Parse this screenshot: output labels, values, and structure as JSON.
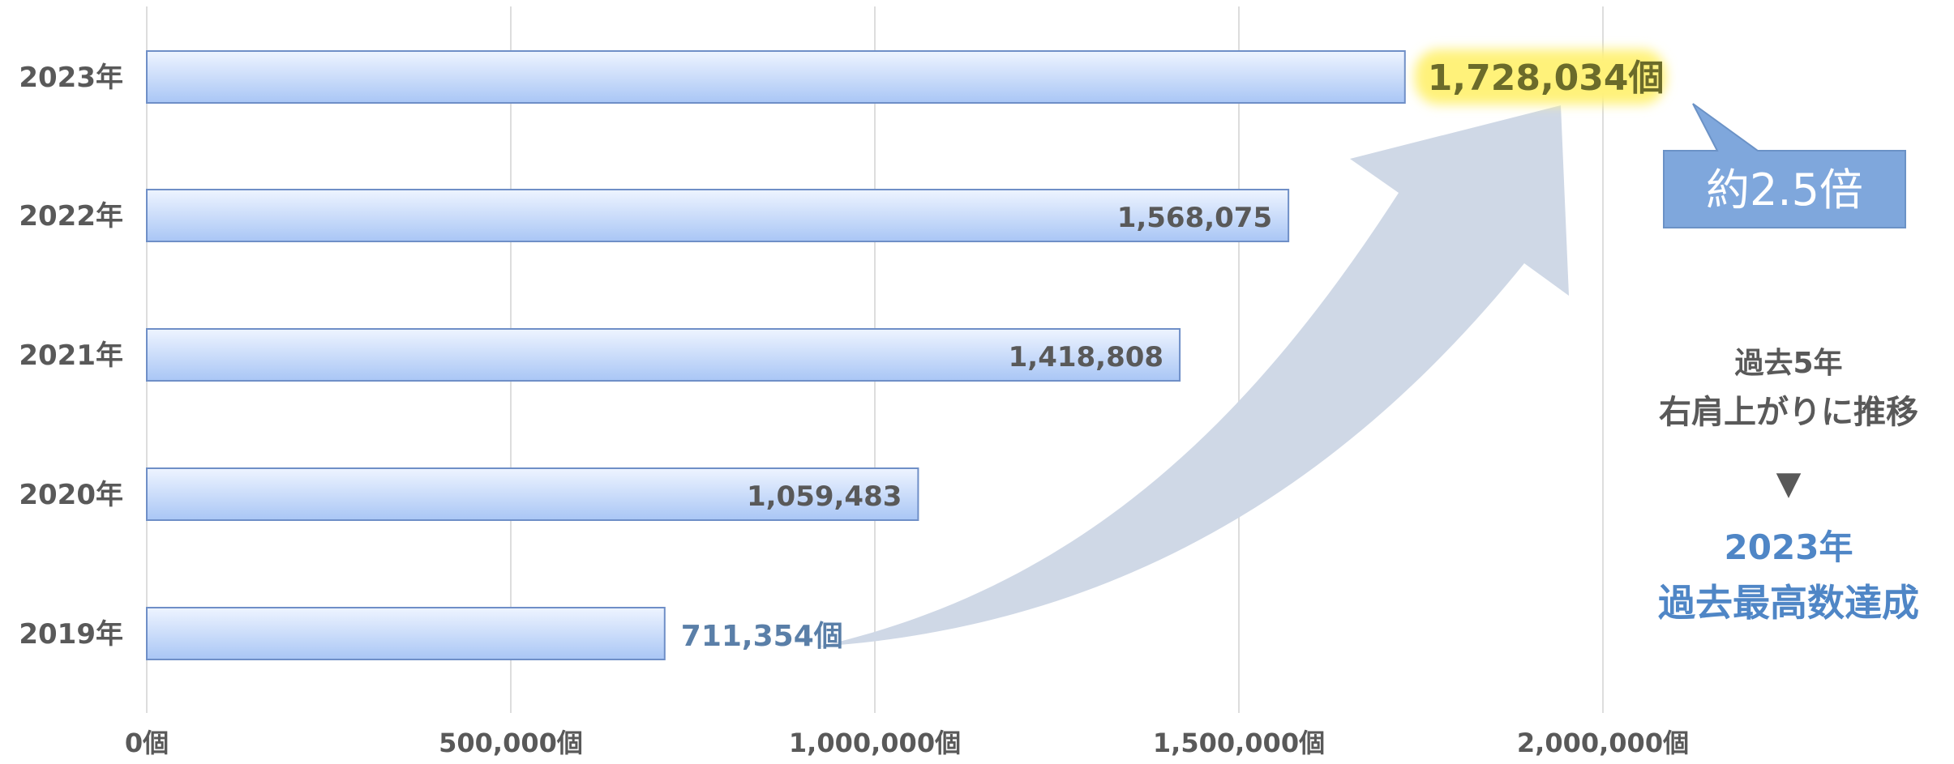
{
  "chart_data": {
    "type": "bar",
    "orientation": "horizontal",
    "categories": [
      "2023年",
      "2022年",
      "2021年",
      "2020年",
      "2019年"
    ],
    "values": [
      1728034,
      1568075,
      1418808,
      1059483,
      711354
    ],
    "value_labels": [
      "1,728,034個",
      "1,568,075",
      "1,418,808",
      "1,059,483",
      "711,354個"
    ],
    "xlim": [
      0,
      2000000
    ],
    "xticks": [
      0,
      500000,
      1000000,
      1500000,
      2000000
    ],
    "xtick_labels": [
      "0個",
      "500,000個",
      "1,000,000個",
      "1,500,000個",
      "2,000,000個"
    ],
    "grid": "vertical",
    "legend": "none",
    "colors": {
      "bar_top": "#eef4ff",
      "bar_bottom": "#a9c6f5",
      "bar_border": "#6f8fc7",
      "label": "#595959",
      "highlight": "#fff27a",
      "callout": "#7fa7dc",
      "arrow": "#cfd8e6",
      "accent_text": "#4f86c6"
    }
  },
  "annotations": {
    "callout": "約2.5倍",
    "side_note_line1": "過去5年",
    "side_note_line2": "右肩上がりに推移",
    "down_marker": "▼",
    "result_line1": "2023年",
    "result_line2": "過去最高数達成"
  }
}
